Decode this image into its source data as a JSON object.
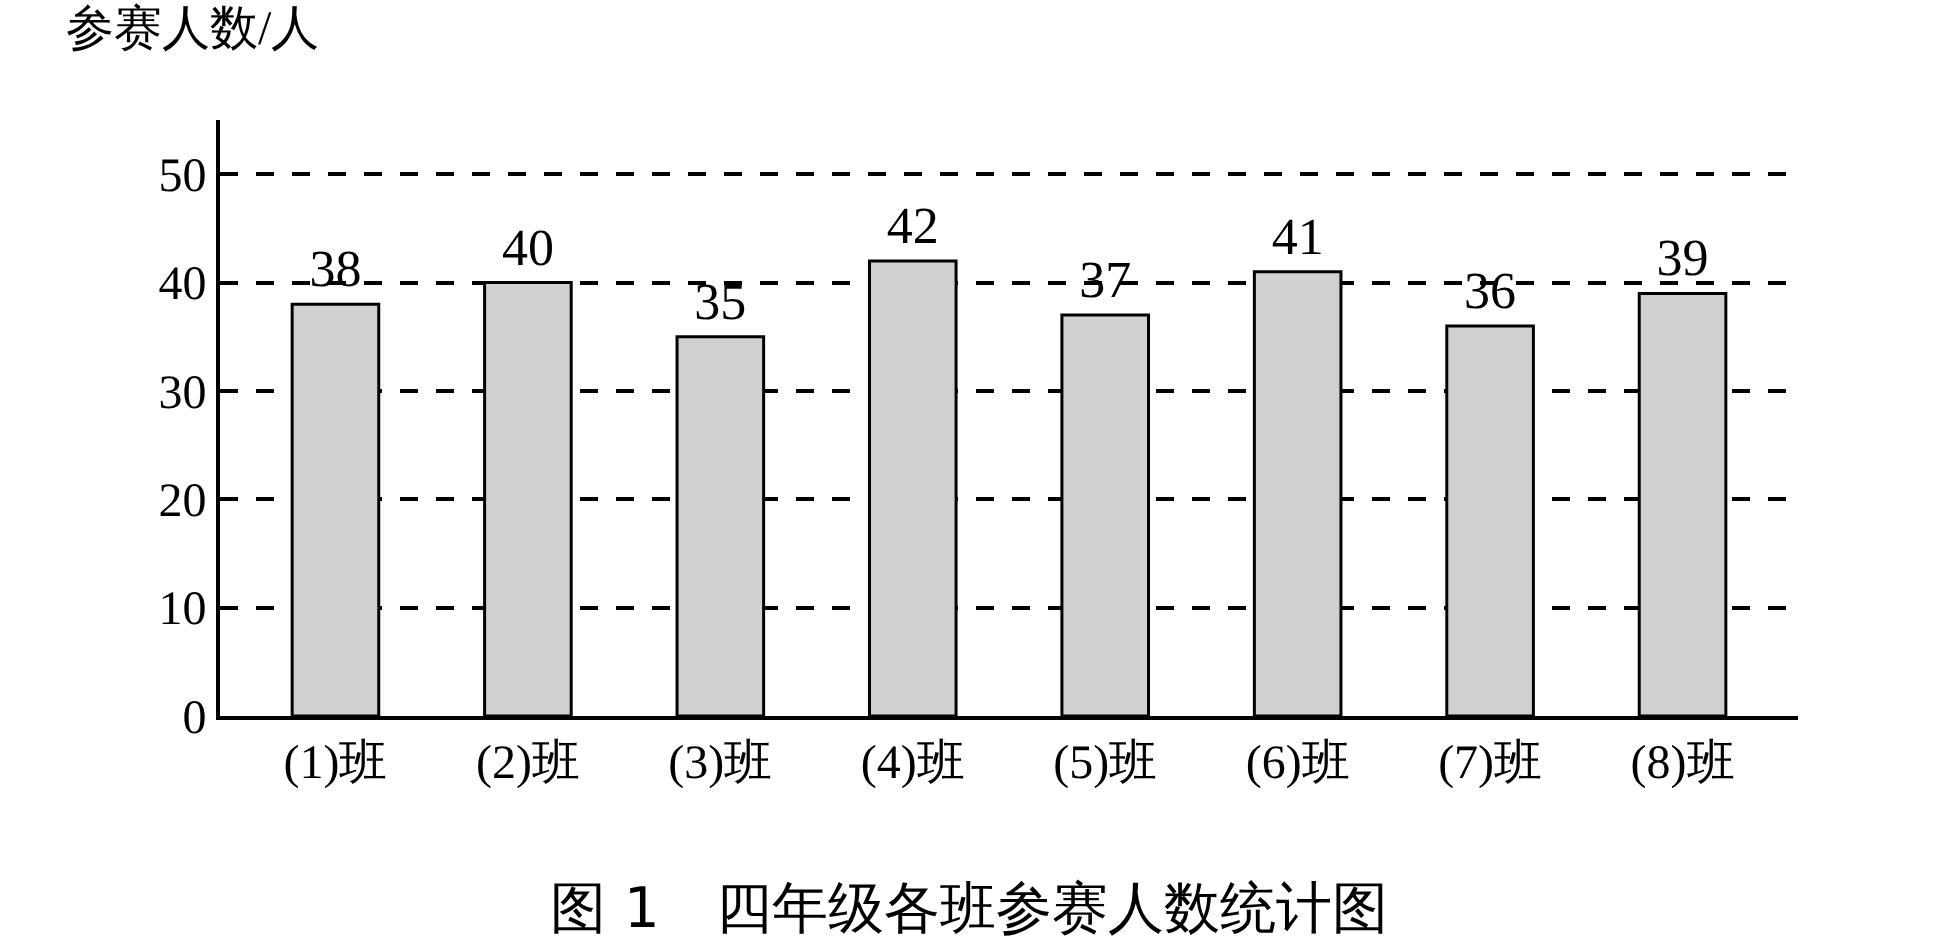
{
  "chart_data": {
    "type": "bar",
    "title": "图 1　四年级各班参赛人数统计图",
    "ylabel": "参赛人数/人",
    "categories": [
      "(1)班",
      "(2)班",
      "(3)班",
      "(4)班",
      "(5)班",
      "(6)班",
      "(7)班",
      "(8)班"
    ],
    "values": [
      38,
      40,
      35,
      42,
      37,
      41,
      36,
      39
    ],
    "color": "#d0d0d0",
    "ylim": [
      0,
      55
    ],
    "yticks": [
      0,
      10,
      20,
      30,
      40,
      50
    ],
    "grid": "y",
    "data_labels": true,
    "legend": false
  }
}
